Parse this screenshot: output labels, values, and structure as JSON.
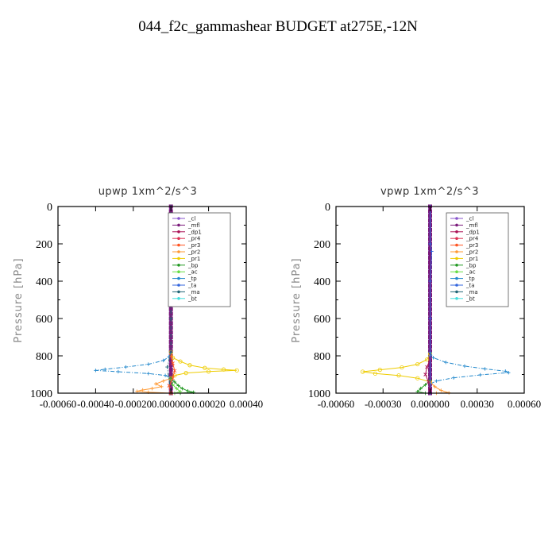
{
  "figure_title": "044_f2c_gammashear  BUDGET at275E,-12N",
  "legend_entries": [
    "_cl",
    "_mfl",
    "_dp1",
    "_pr4",
    "_pr3",
    "_pr2",
    "_pr1",
    "_bp",
    "_ac",
    "_tp",
    "_ta",
    "_ma",
    "_bt"
  ],
  "colors": {
    "_cl": "#8855cc",
    "_mfl": "#7a1a7a",
    "_dp1": "#aa1155",
    "_pr4": "#dd3355",
    "_pr3": "#ff5522",
    "_pr2": "#ff9933",
    "_pr1": "#eecc00",
    "_bp": "#229922",
    "_ac": "#66dd44",
    "_tp": "#2288cc",
    "_ta": "#3366dd",
    "_ma": "#226677",
    "_bt": "#44dddd"
  },
  "chart_data": [
    {
      "type": "line",
      "title": "upwp   1xm^2/s^3",
      "ylabel": "Pressure [hPa]",
      "xlabel": "",
      "xlim": [
        -0.0006,
        0.0004
      ],
      "ylim": [
        1000,
        0
      ],
      "yticks": [
        0,
        200,
        400,
        600,
        800,
        1000
      ],
      "ytick_labels": [
        "0",
        "200",
        "400",
        "600",
        "800",
        "1000"
      ],
      "xticks": [
        -0.0006,
        -0.0004,
        -0.0002,
        0.0,
        0.0002,
        0.0004
      ],
      "xtick_labels": [
        "-0.00060",
        "-0.00040",
        "-0.00020",
        "0.000000",
        "0.00020",
        "0.00040"
      ],
      "legend_position": "top-right",
      "series": [
        {
          "name": "_pr1",
          "points": [
            [
              0,
              780
            ],
            [
              1e-05,
              810
            ],
            [
              5e-05,
              830
            ],
            [
              0.0001,
              850
            ],
            [
              0.00018,
              865
            ],
            [
              0.00028,
              873
            ],
            [
              0.00035,
              878
            ],
            [
              0.0002,
              884
            ],
            [
              8e-05,
              892
            ],
            [
              2e-05,
              905
            ],
            [
              0,
              920
            ]
          ]
        },
        {
          "name": "_tp",
          "points": [
            [
              0,
              780
            ],
            [
              -1e-05,
              805
            ],
            [
              -4e-05,
              825
            ],
            [
              -0.00012,
              845
            ],
            [
              -0.00024,
              860
            ],
            [
              -0.00035,
              872
            ],
            [
              -0.0004,
              878
            ],
            [
              -0.00028,
              885
            ],
            [
              -0.00012,
              895
            ],
            [
              -3e-05,
              905
            ],
            [
              0,
              920
            ]
          ]
        },
        {
          "name": "_pr2",
          "points": [
            [
              0,
              920
            ],
            [
              -4e-05,
              935
            ],
            [
              -8e-05,
              950
            ],
            [
              -5e-05,
              965
            ],
            [
              -0.0001,
              975
            ],
            [
              -0.00015,
              983
            ],
            [
              -0.00018,
              990
            ],
            [
              -0.00012,
              995
            ],
            [
              0,
              1000
            ]
          ]
        },
        {
          "name": "_bp",
          "points": [
            [
              0,
              920
            ],
            [
              2e-05,
              940
            ],
            [
              4e-05,
              960
            ],
            [
              6e-05,
              975
            ],
            [
              9e-05,
              988
            ],
            [
              0.00012,
              995
            ],
            [
              5e-05,
              1000
            ]
          ]
        },
        {
          "name": "_ac",
          "points": [
            [
              0,
              930
            ],
            [
              1e-05,
              955
            ],
            [
              3e-05,
              975
            ],
            [
              5e-05,
              992
            ],
            [
              2e-05,
              1000
            ]
          ]
        },
        {
          "name": "_pr3",
          "points": [
            [
              0,
              800
            ],
            [
              1e-05,
              840
            ],
            [
              2e-05,
              880
            ],
            [
              1e-05,
              920
            ],
            [
              -1e-05,
              960
            ],
            [
              0,
              1000
            ]
          ]
        },
        {
          "name": "_ma",
          "points": [
            [
              0,
              0
            ],
            [
              0,
              200
            ],
            [
              0,
              400
            ],
            [
              0,
              600
            ],
            [
              0,
              780
            ],
            [
              -2e-05,
              860
            ],
            [
              0,
              1000
            ]
          ]
        }
      ]
    },
    {
      "type": "line",
      "title": "vpwp   1xm^2/s^3",
      "ylabel": "Pressure [hPa]",
      "xlabel": "",
      "xlim": [
        -0.0006,
        0.0006
      ],
      "ylim": [
        1000,
        0
      ],
      "yticks": [
        0,
        200,
        400,
        600,
        800,
        1000
      ],
      "ytick_labels": [
        "0",
        "200",
        "400",
        "600",
        "800",
        "1000"
      ],
      "xticks": [
        -0.0006,
        -0.0003,
        0.0,
        0.0003,
        0.0006
      ],
      "xtick_labels": [
        "-0.00060",
        "-0.00030",
        "0.000000",
        "0.00030",
        "0.00060"
      ],
      "legend_position": "top-right",
      "series": [
        {
          "name": "_pr1",
          "points": [
            [
              0,
              790
            ],
            [
              -2e-05,
              820
            ],
            [
              -8e-05,
              845
            ],
            [
              -0.00018,
              862
            ],
            [
              -0.00032,
              875
            ],
            [
              -0.00043,
              885
            ],
            [
              -0.00035,
              895
            ],
            [
              -0.0002,
              905
            ],
            [
              -8e-05,
              920
            ],
            [
              0,
              940
            ]
          ]
        },
        {
          "name": "_tp",
          "points": [
            [
              0,
              780
            ],
            [
              2e-05,
              810
            ],
            [
              0.0001,
              835
            ],
            [
              0.00022,
              855
            ],
            [
              0.00035,
              870
            ],
            [
              0.00048,
              882
            ],
            [
              0.0005,
              890
            ],
            [
              0.00032,
              902
            ],
            [
              0.00015,
              918
            ],
            [
              4e-05,
              935
            ],
            [
              0,
              950
            ]
          ]
        },
        {
          "name": "_pr2",
          "points": [
            [
              0,
              940
            ],
            [
              3e-05,
              965
            ],
            [
              7e-05,
              985
            ],
            [
              0.00012,
              998
            ],
            [
              4e-05,
              1000
            ]
          ]
        },
        {
          "name": "_bp",
          "points": [
            [
              0,
              930
            ],
            [
              -3e-05,
              955
            ],
            [
              -6e-05,
              975
            ],
            [
              -8e-05,
              992
            ],
            [
              -3e-05,
              1000
            ]
          ]
        },
        {
          "name": "_dp1",
          "points": [
            [
              0,
              820
            ],
            [
              -2e-05,
              860
            ],
            [
              -3e-05,
              900
            ],
            [
              -1e-05,
              940
            ],
            [
              0,
              980
            ]
          ]
        },
        {
          "name": "_ta",
          "points": [
            [
              0,
              0
            ],
            [
              0,
              200
            ],
            [
              1e-05,
              240
            ],
            [
              0,
              400
            ],
            [
              0,
              600
            ],
            [
              0,
              800
            ],
            [
              0,
              1000
            ]
          ]
        }
      ]
    }
  ]
}
